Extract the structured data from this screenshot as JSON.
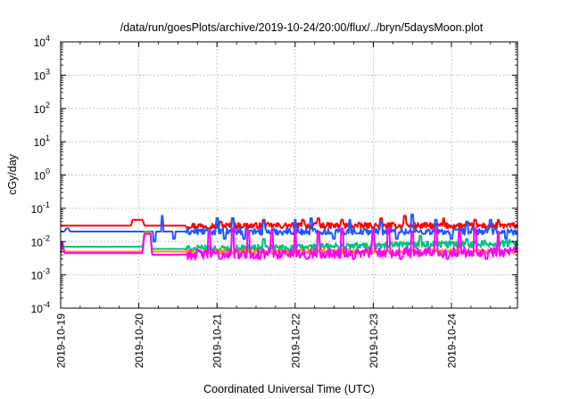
{
  "chart_data": {
    "type": "line",
    "title": "/data/run/goesPlots/archive/2019-10-24/20:00/flux/../bryn/5daysMoon.plot",
    "xlabel": "Coordinated Universal Time (UTC)",
    "ylabel": "cGy/day",
    "yscale": "log",
    "ylim": [
      0.0001,
      10000
    ],
    "xlim": [
      "2019-10-19",
      "2019-10-24 20:00"
    ],
    "y_ticks": [
      {
        "base": "10",
        "exp": "-4"
      },
      {
        "base": "10",
        "exp": "-3"
      },
      {
        "base": "10",
        "exp": "-2"
      },
      {
        "base": "10",
        "exp": "-1"
      },
      {
        "base": "10",
        "exp": "0"
      },
      {
        "base": "10",
        "exp": "1"
      },
      {
        "base": "10",
        "exp": "2"
      },
      {
        "base": "10",
        "exp": "3"
      },
      {
        "base": "10",
        "exp": "4"
      }
    ],
    "x_ticks": [
      "2019-10-19",
      "2019-10-20",
      "2019-10-21",
      "2019-10-22",
      "2019-10-23",
      "2019-10-24"
    ],
    "grid": true,
    "legend": "none",
    "series": [
      {
        "color": "#ff0000",
        "base": [
          [
            0,
            0.03
          ],
          [
            0.9,
            0.03
          ],
          [
            0.92,
            0.045
          ],
          [
            1.05,
            0.045
          ],
          [
            1.07,
            0.03
          ],
          [
            5.85,
            0.03
          ]
        ],
        "spikes": [
          [
            1.3,
            0.05
          ],
          [
            2.05,
            0.04
          ],
          [
            2.2,
            0.05
          ],
          [
            2.6,
            0.045
          ],
          [
            3.1,
            0.045
          ],
          [
            3.3,
            0.05
          ],
          [
            3.6,
            0.045
          ],
          [
            4.1,
            0.05
          ],
          [
            4.4,
            0.06
          ],
          [
            4.9,
            0.05
          ],
          [
            5.3,
            0.045
          ],
          [
            5.6,
            0.045
          ]
        ],
        "noise": 0.18
      },
      {
        "color": "#1e5aff",
        "base": [
          [
            0,
            0.02
          ],
          [
            0.05,
            0.02
          ],
          [
            0.07,
            0.025
          ],
          [
            0.1,
            0.025
          ],
          [
            0.12,
            0.02
          ],
          [
            1.05,
            0.02
          ],
          [
            1.2,
            0.02
          ],
          [
            5.85,
            0.02
          ]
        ],
        "spikes": [
          [
            1.2,
            0.01
          ],
          [
            1.3,
            0.06
          ],
          [
            1.45,
            0.012
          ],
          [
            2.0,
            0.05
          ],
          [
            2.1,
            0.012
          ],
          [
            2.2,
            0.05
          ],
          [
            2.35,
            0.012
          ],
          [
            2.6,
            0.04
          ],
          [
            3.0,
            0.045
          ],
          [
            3.2,
            0.05
          ],
          [
            3.5,
            0.012
          ],
          [
            3.7,
            0.045
          ],
          [
            4.1,
            0.04
          ],
          [
            4.3,
            0.012
          ],
          [
            4.5,
            0.065
          ],
          [
            4.8,
            0.045
          ],
          [
            5.0,
            0.012
          ],
          [
            5.2,
            0.04
          ],
          [
            5.5,
            0.045
          ],
          [
            5.7,
            0.012
          ]
        ],
        "noise": 0.2
      },
      {
        "color": "#00c080",
        "base": [
          [
            0,
            0.007
          ],
          [
            1.05,
            0.007
          ],
          [
            1.07,
            0.02
          ],
          [
            1.15,
            0.02
          ],
          [
            1.17,
            0.006
          ],
          [
            2.0,
            0.006
          ],
          [
            5.85,
            0.009
          ]
        ],
        "spikes": [
          [
            2.2,
            0.015
          ],
          [
            2.6,
            0.012
          ],
          [
            3.3,
            0.015
          ],
          [
            4.0,
            0.012
          ],
          [
            4.6,
            0.015
          ],
          [
            5.2,
            0.012
          ]
        ],
        "noise": 0.22
      },
      {
        "color": "#ff8c00",
        "base": [
          [
            0,
            0.005
          ],
          [
            1.05,
            0.005
          ],
          [
            1.07,
            0.018
          ],
          [
            1.15,
            0.018
          ],
          [
            1.17,
            0.005
          ],
          [
            5.85,
            0.005
          ]
        ],
        "spikes": [],
        "noise": 0.15
      },
      {
        "color": "#ff00ff",
        "base": [
          [
            0,
            0.0045
          ],
          [
            0.02,
            0.01
          ],
          [
            0.05,
            0.0045
          ],
          [
            1.05,
            0.0045
          ],
          [
            1.07,
            0.017
          ],
          [
            1.15,
            0.017
          ],
          [
            1.17,
            0.004
          ],
          [
            5.85,
            0.005
          ]
        ],
        "spikes": [
          [
            1.9,
            0.02
          ],
          [
            2.05,
            0.003
          ],
          [
            2.2,
            0.025
          ],
          [
            2.4,
            0.02
          ],
          [
            2.55,
            0.003
          ],
          [
            2.7,
            0.02
          ],
          [
            3.0,
            0.025
          ],
          [
            3.15,
            0.003
          ],
          [
            3.3,
            0.02
          ],
          [
            3.6,
            0.025
          ],
          [
            3.75,
            0.003
          ],
          [
            4.0,
            0.02
          ],
          [
            4.2,
            0.025
          ],
          [
            4.35,
            0.003
          ],
          [
            4.5,
            0.02
          ],
          [
            4.8,
            0.025
          ],
          [
            4.95,
            0.003
          ],
          [
            5.1,
            0.02
          ],
          [
            5.3,
            0.025
          ],
          [
            5.45,
            0.003
          ],
          [
            5.6,
            0.02
          ]
        ],
        "noise": 0.3
      }
    ]
  }
}
